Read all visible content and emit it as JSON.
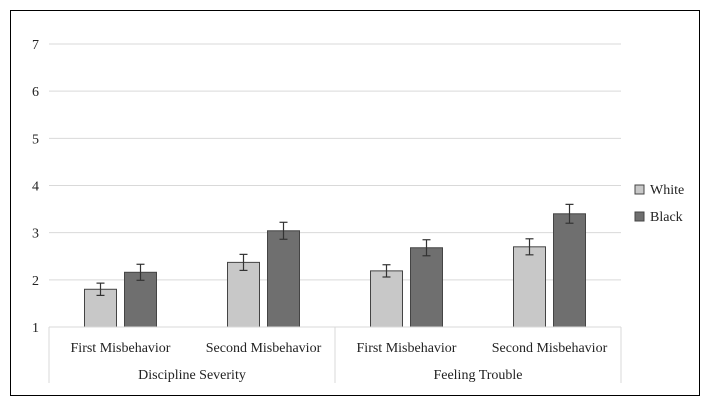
{
  "chart_data": {
    "type": "bar",
    "title": "",
    "xlabel": "",
    "ylabel": "",
    "ylim": [
      1,
      7
    ],
    "yticks": [
      1,
      2,
      3,
      4,
      5,
      6,
      7
    ],
    "grid": true,
    "legend_position": "right",
    "groups": [
      {
        "label": "Discipline Severity",
        "categories": [
          "First Misbehavior",
          "Second Misbehavior"
        ]
      },
      {
        "label": "Feeling Trouble",
        "categories": [
          "First Misbehavior",
          "Second Misbehavior"
        ]
      }
    ],
    "categories": [
      "First Misbehavior",
      "Second Misbehavior",
      "First Misbehavior",
      "Second Misbehavior"
    ],
    "series": [
      {
        "name": "White",
        "color": "#c8c8c8",
        "values": [
          1.8,
          2.37,
          2.19,
          2.7
        ],
        "errors": [
          0.13,
          0.17,
          0.13,
          0.17
        ]
      },
      {
        "name": "Black",
        "color": "#6f6f6f",
        "values": [
          2.16,
          3.04,
          2.68,
          3.4
        ],
        "errors": [
          0.17,
          0.18,
          0.17,
          0.2
        ]
      }
    ]
  }
}
